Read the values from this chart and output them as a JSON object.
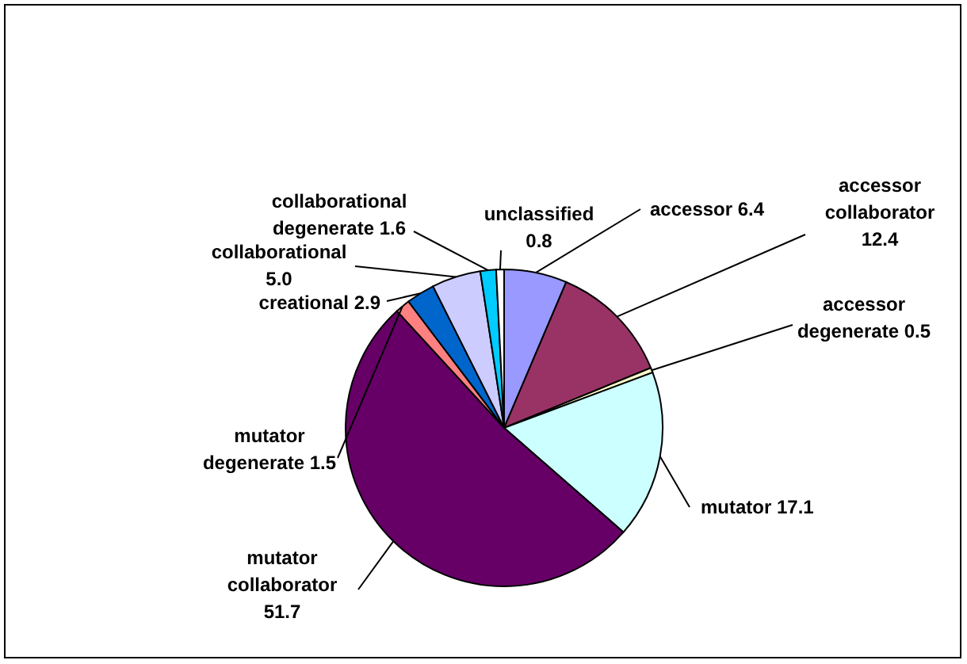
{
  "chart_data": {
    "type": "pie",
    "categories": [
      "accessor",
      "accessor collaborator",
      "accessor degenerate",
      "mutator",
      "mutator collaborator",
      "mutator degenerate",
      "creational",
      "collaborational",
      "collaborational degenerate",
      "unclassified"
    ],
    "values": [
      6.4,
      12.4,
      0.5,
      17.1,
      51.7,
      1.5,
      2.9,
      5.0,
      1.6,
      0.8
    ],
    "colors": [
      "#9999ff",
      "#993366",
      "#ffffcc",
      "#ccffff",
      "#660066",
      "#ff8080",
      "#0066cc",
      "#ccccff",
      "#00ccff",
      "#ffffff"
    ],
    "value_labels": [
      "6.4",
      "12.4",
      "0.5",
      "17.1",
      "51.7",
      "1.5",
      "2.9",
      "5.0",
      "1.6",
      "0.8"
    ],
    "legend": false
  }
}
